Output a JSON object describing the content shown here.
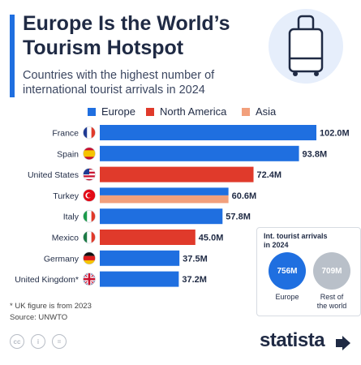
{
  "header": {
    "title_line1": "Europe Is the World’s",
    "title_line2": "Tourism Hotspot",
    "subtitle_line1": "Countries with the highest number of",
    "subtitle_line2": "international tourist arrivals in 2024"
  },
  "colors": {
    "Europe": "#1f6fe0",
    "North America": "#e03a2b",
    "Asia": "#f2a07c"
  },
  "chart_data": [
    {
      "type": "bar",
      "orientation": "horizontal",
      "title": "Countries with the highest number of international tourist arrivals in 2024",
      "legend": [
        "Europe",
        "North America",
        "Asia"
      ],
      "legend_position": "top",
      "unit": "M",
      "categories": [
        "France",
        "Spain",
        "United States",
        "Turkey",
        "Italy",
        "Mexico",
        "Germany",
        "United Kingdom*"
      ],
      "values": [
        102.0,
        93.8,
        72.4,
        60.6,
        57.8,
        45.0,
        37.5,
        37.2
      ],
      "labels": [
        "102.0M",
        "93.8M",
        "72.4M",
        "60.6M",
        "57.8M",
        "45.0M",
        "37.5M",
        "37.2M"
      ],
      "regions": [
        [
          "Europe"
        ],
        [
          "Europe"
        ],
        [
          "North America"
        ],
        [
          "Europe",
          "Asia"
        ],
        [
          "Europe"
        ],
        [
          "North America"
        ],
        [
          "Europe"
        ],
        [
          "Europe"
        ]
      ],
      "flags": [
        "france-flag-icon",
        "spain-flag-icon",
        "usa-flag-icon",
        "turkey-flag-icon",
        "italy-flag-icon",
        "mexico-flag-icon",
        "germany-flag-icon",
        "uk-flag-icon"
      ],
      "xlim": [
        0,
        102
      ],
      "grid": false
    },
    {
      "type": "bubble",
      "title": "Int. tourist arrivals in 2024",
      "categories": [
        "Europe",
        "Rest of the world"
      ],
      "values": [
        756,
        709
      ],
      "labels": [
        "756M",
        "709M"
      ]
    }
  ],
  "inset": {
    "title_line1": "Int. tourist arrivals",
    "title_line2": "in 2024",
    "europe_value": "756M",
    "europe_label": "Europe",
    "rest_value": "709M",
    "rest_label_line1": "Rest of",
    "rest_label_line2": "the world"
  },
  "notes": {
    "footnote": "* UK figure is from 2023",
    "source": "Source: UNWTO"
  },
  "footer": {
    "brand": "statista",
    "cc_icons": [
      "cc-icon",
      "attribution-icon",
      "no-derivatives-icon"
    ]
  }
}
